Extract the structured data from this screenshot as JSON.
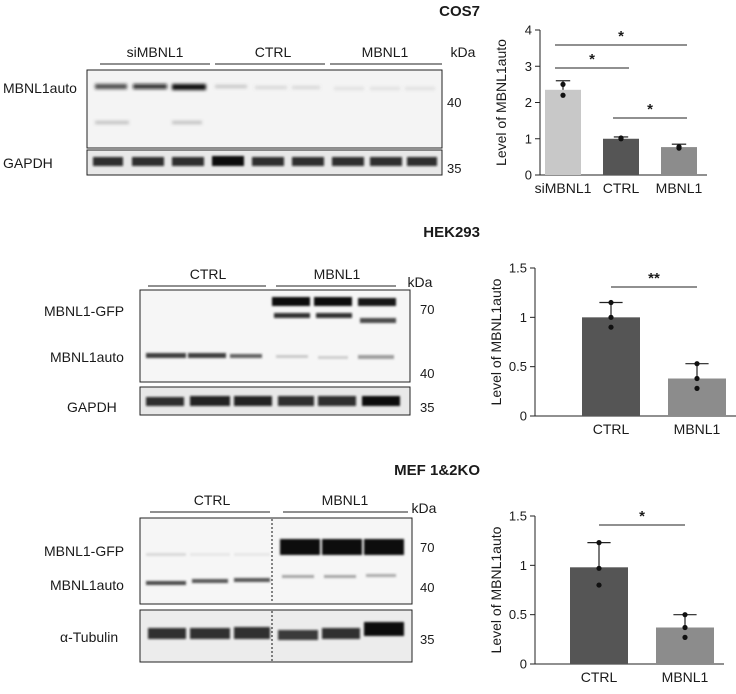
{
  "panels": [
    {
      "title": "COS7",
      "blot": {
        "groups": [
          "siMBNL1",
          "CTRL",
          "MBNL1"
        ],
        "unit": "kDa",
        "bands": [
          "MBNL1auto",
          "GAPDH"
        ],
        "markers": [
          "40",
          "35"
        ]
      }
    },
    {
      "title": "HEK293",
      "blot": {
        "groups": [
          "CTRL",
          "MBNL1"
        ],
        "unit": "kDa",
        "bands": [
          "MBNL1-GFP",
          "MBNL1auto",
          "GAPDH"
        ],
        "markers": [
          "70",
          "40",
          "35"
        ]
      }
    },
    {
      "title": "MEF 1&2KO",
      "blot": {
        "groups": [
          "CTRL",
          "MBNL1"
        ],
        "unit": "kDa",
        "bands": [
          "MBNL1-GFP",
          "MBNL1auto",
          "α-Tubulin"
        ],
        "markers": [
          "70",
          "40",
          "35"
        ]
      }
    }
  ],
  "chart_data": [
    {
      "type": "bar",
      "categories": [
        "siMBNL1",
        "CTRL",
        "MBNL1"
      ],
      "values": [
        2.35,
        1.0,
        0.77
      ],
      "errors": [
        0.25,
        0.05,
        0.08
      ],
      "points": [
        [
          2.2,
          2.5
        ],
        [
          1.0,
          1.02
        ],
        [
          0.74,
          0.78
        ]
      ],
      "colors": [
        "#c8c8c8",
        "#555555",
        "#8c8c8c"
      ],
      "ylabel": "Level of MBNL1auto",
      "ylim": [
        0,
        4
      ],
      "yticks": [
        "0",
        "1",
        "2",
        "3",
        "4"
      ],
      "significance": [
        {
          "from": 0,
          "to": 2,
          "label": "*"
        },
        {
          "from": 0,
          "to": 1,
          "label": "*"
        },
        {
          "from": 1,
          "to": 2,
          "label": "*"
        }
      ]
    },
    {
      "type": "bar",
      "categories": [
        "CTRL",
        "MBNL1"
      ],
      "values": [
        1.0,
        0.38
      ],
      "errors": [
        0.15,
        0.15
      ],
      "points": [
        [
          0.9,
          1.0,
          1.15
        ],
        [
          0.28,
          0.38,
          0.53
        ]
      ],
      "colors": [
        "#555555",
        "#8c8c8c"
      ],
      "ylabel": "Level of MBNL1auto",
      "ylim": [
        0,
        1.5
      ],
      "yticks": [
        "0",
        "0.5",
        "1",
        "1.5"
      ],
      "significance": [
        {
          "from": 0,
          "to": 1,
          "label": "**"
        }
      ]
    },
    {
      "type": "bar",
      "categories": [
        "CTRL",
        "MBNL1"
      ],
      "values": [
        0.98,
        0.37
      ],
      "errors": [
        0.25,
        0.13
      ],
      "points": [
        [
          0.8,
          0.97,
          1.23
        ],
        [
          0.27,
          0.37,
          0.5
        ]
      ],
      "colors": [
        "#555555",
        "#8c8c8c"
      ],
      "ylabel": "Level of MBNL1auto",
      "ylim": [
        0,
        1.5
      ],
      "yticks": [
        "0",
        "0.5",
        "1",
        "1.5"
      ],
      "significance": [
        {
          "from": 0,
          "to": 1,
          "label": "*"
        }
      ]
    }
  ]
}
